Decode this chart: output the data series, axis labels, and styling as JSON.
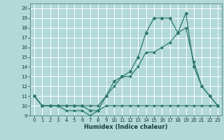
{
  "title": "",
  "xlabel": "Humidex (Indice chaleur)",
  "background_color": "#b2d8d8",
  "grid_color": "#ffffff",
  "line_color": "#2d7a6e",
  "xlim": [
    -0.5,
    23.5
  ],
  "ylim": [
    9,
    20.5
  ],
  "yticks": [
    9,
    10,
    11,
    12,
    13,
    14,
    15,
    16,
    17,
    18,
    19,
    20
  ],
  "xticks": [
    0,
    1,
    2,
    3,
    4,
    5,
    6,
    7,
    8,
    9,
    10,
    11,
    12,
    13,
    14,
    15,
    16,
    17,
    18,
    19,
    20,
    21,
    22,
    23
  ],
  "series1_x": [
    0,
    1,
    2,
    3,
    4,
    5,
    6,
    7,
    8,
    9,
    10,
    11,
    12,
    13,
    14,
    15,
    16,
    17,
    18,
    19,
    20,
    21,
    22,
    23
  ],
  "series1_y": [
    11,
    10,
    10,
    10,
    9.5,
    9.5,
    9.5,
    9,
    9.5,
    10,
    10,
    10,
    10,
    10,
    10,
    10,
    10,
    10,
    10,
    10,
    10,
    10,
    10,
    10
  ],
  "series2_x": [
    0,
    1,
    2,
    3,
    4,
    5,
    6,
    7,
    8,
    9,
    10,
    11,
    12,
    13,
    14,
    15,
    16,
    17,
    18,
    19,
    20,
    21,
    22,
    23
  ],
  "series2_y": [
    11,
    10,
    10,
    10,
    10,
    10,
    10,
    10,
    10,
    11,
    12,
    13,
    13,
    14,
    15.5,
    15.5,
    16,
    16.5,
    17.5,
    18,
    14.5,
    12,
    11,
    10
  ],
  "series3_x": [
    0,
    1,
    2,
    3,
    4,
    5,
    6,
    7,
    8,
    9,
    10,
    11,
    12,
    13,
    14,
    15,
    16,
    17,
    18,
    19,
    20,
    21,
    22,
    23
  ],
  "series3_y": [
    11,
    10,
    10,
    10,
    10,
    10,
    10,
    9.5,
    9.5,
    11,
    12.5,
    13,
    13.5,
    15,
    17.5,
    19,
    19,
    19,
    17.5,
    19.5,
    14,
    12,
    11,
    10
  ]
}
